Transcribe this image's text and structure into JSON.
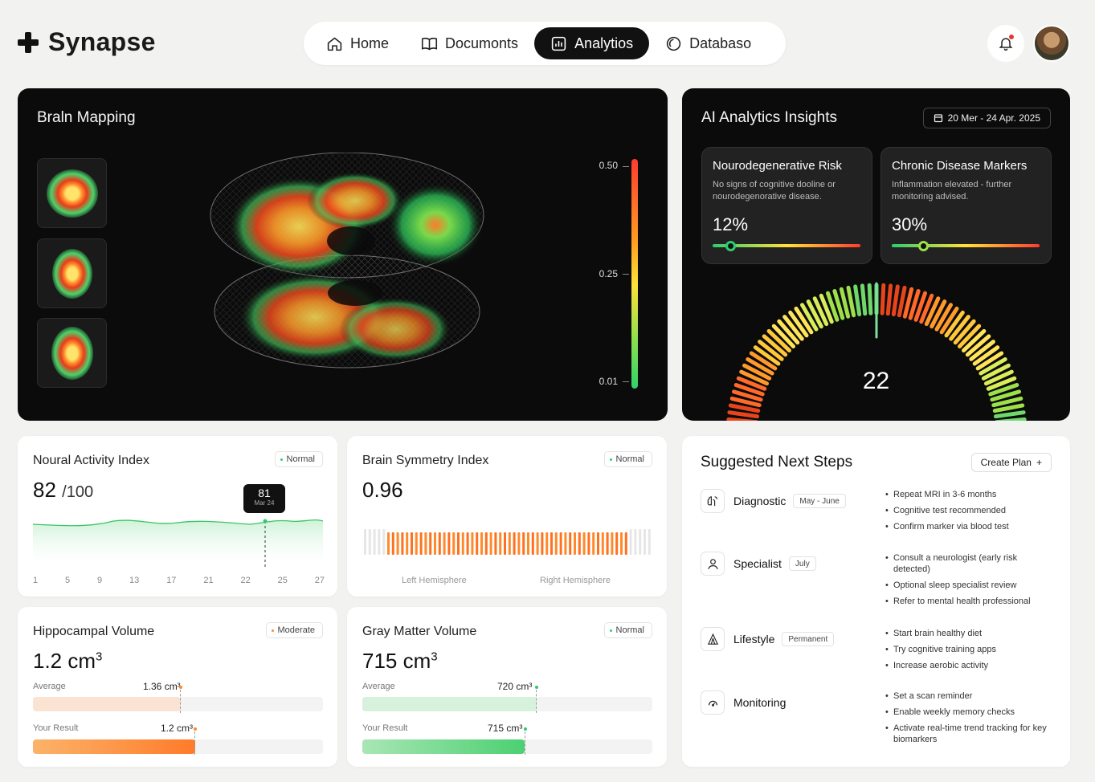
{
  "app": {
    "name": "Synapse"
  },
  "nav": [
    {
      "label": "Home",
      "icon": "home-icon",
      "active": false
    },
    {
      "label": "Documonts",
      "icon": "book-icon",
      "active": false
    },
    {
      "label": "Analytios",
      "icon": "analytics-icon",
      "active": true
    },
    {
      "label": "Databaso",
      "icon": "database-icon",
      "active": false
    }
  ],
  "brain": {
    "title": "Braln Mapping",
    "scale": {
      "top": "0.50",
      "mid": "0.25",
      "bottom": "0.01"
    }
  },
  "ai": {
    "title": "AI Analytics Insights",
    "range": "20 Mer - 24 Apr. 2025",
    "risk_cards": [
      {
        "title": "Nourodegenerative Risk",
        "desc": "No signs of cognitive dooline or nourodegenorative disease.",
        "value": "12%",
        "level": 0.12
      },
      {
        "title": "Chronic Disease Markers",
        "desc": "Inflammation elevated - further monitoring advised.",
        "value": "30%",
        "level": 0.3
      }
    ],
    "gauge_value": "22"
  },
  "neural": {
    "title": "Noural Activity Index",
    "badge": "Normal",
    "value": "82",
    "unit": "/100",
    "tooltip": {
      "value": "81",
      "date": "Mar 24"
    },
    "x_ticks": [
      "1",
      "5",
      "9",
      "13",
      "17",
      "21",
      "22",
      "25",
      "27"
    ]
  },
  "symmetry": {
    "title": "Brain Symmetry Index",
    "badge": "Normal",
    "value": "0.96",
    "left_label": "Left Hemisphere",
    "right_label": "Right Hemisphere"
  },
  "hippo": {
    "title": "Hippocampal Volume",
    "badge": "Moderate",
    "value": "1.2 cm",
    "sup": "3",
    "avg_label": "Average",
    "avg_value": "1.36 cm³",
    "avg_level": 0.51,
    "your_label": "Your Result",
    "your_value": "1.2 cm³",
    "your_level": 0.56
  },
  "gray": {
    "title": "Gray Matter Volume",
    "badge": "Normal",
    "value": "715 cm",
    "sup": "3",
    "avg_label": "Average",
    "avg_value": "720 cm³",
    "avg_level": 0.6,
    "your_label": "Your Result",
    "your_value": "715 cm³",
    "your_level": 0.56
  },
  "suggest": {
    "title": "Suggested Next Steps",
    "plan_btn": "Create Plan",
    "steps": [
      {
        "name": "Diagnostic",
        "tag": "May - June",
        "icon": "brain-icon",
        "items": [
          "Repeat MRI in 3-6 months",
          "Cognitive test recommended",
          "Confirm marker via blood test"
        ]
      },
      {
        "name": "Specialist",
        "tag": "July",
        "icon": "user-icon",
        "items": [
          "Consult a neurologist (early risk detected)",
          "Optional sleep specialist review",
          "Refer to mental health professional"
        ]
      },
      {
        "name": "Lifestyle",
        "tag": "Permanent",
        "icon": "run-icon",
        "items": [
          "Start brain healthy diet",
          "Try cognitive training apps",
          "Increase aerobic activity"
        ]
      },
      {
        "name": "Monitoring",
        "tag": "",
        "icon": "monitor-icon",
        "items": [
          "Set a scan reminder",
          "Enable weekly memory checks",
          "Activate real-time trend tracking for key biomarkers"
        ]
      }
    ]
  }
}
